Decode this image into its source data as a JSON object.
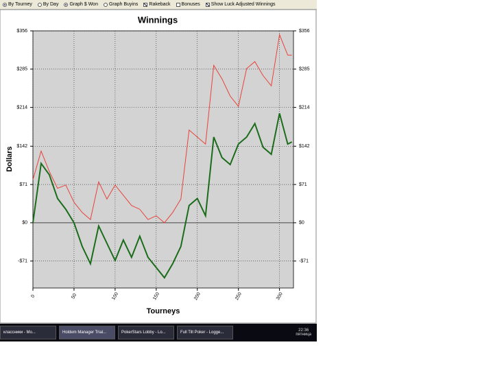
{
  "toolbar": {
    "items": [
      {
        "label": "By Tourney",
        "kind": "radio",
        "checked": true
      },
      {
        "label": "By Day",
        "kind": "radio",
        "checked": false
      },
      {
        "label": "Graph $ Won",
        "kind": "radio",
        "checked": true
      },
      {
        "label": "Graph Buyins",
        "kind": "radio",
        "checked": false
      },
      {
        "label": "Rakeback",
        "kind": "check",
        "checked": true
      },
      {
        "label": "Bonuses",
        "kind": "check",
        "checked": false
      },
      {
        "label": "Show Luck Adjusted Winnings",
        "kind": "check",
        "checked": true
      }
    ]
  },
  "chart_data": {
    "type": "line",
    "title": "Winnings",
    "x_label": "Tourneys",
    "y_label": "Dollars",
    "x": [
      0,
      10,
      20,
      30,
      40,
      50,
      60,
      70,
      80,
      90,
      100,
      110,
      120,
      130,
      140,
      150,
      160,
      170,
      180,
      190,
      200,
      210,
      220,
      230,
      240,
      250,
      260,
      270,
      280,
      290,
      300,
      310,
      315
    ],
    "series": [
      {
        "color": "#e8423a",
        "values": [
          80,
          133,
          95,
          64,
          70,
          38,
          19,
          6,
          76,
          44,
          70,
          51,
          32,
          25,
          6,
          13,
          0,
          19,
          44,
          172,
          159,
          146,
          292,
          267,
          235,
          216,
          286,
          299,
          273,
          254,
          349,
          311,
          311
        ]
      },
      {
        "color": "#1a6b1a",
        "values": [
          0,
          110,
          89,
          45,
          25,
          0,
          -44,
          -76,
          -6,
          -38,
          -70,
          -32,
          -64,
          -25,
          -64,
          -83,
          -102,
          -76,
          -44,
          32,
          45,
          13,
          159,
          121,
          108,
          146,
          159,
          184,
          140,
          127,
          203,
          146,
          150
        ]
      }
    ],
    "xlim": [
      0,
      317
    ],
    "xticks": [
      0,
      50,
      100,
      150,
      200,
      250,
      300
    ],
    "ylim": [
      -121,
      356
    ],
    "yticks": [
      {
        "value": -71,
        "label": "-$71"
      },
      {
        "value": 0,
        "label": "$0"
      },
      {
        "value": 71,
        "label": "$71"
      },
      {
        "value": 142,
        "label": "$142"
      },
      {
        "value": 214,
        "label": "$214"
      },
      {
        "value": 285,
        "label": "$285"
      },
      {
        "value": 356,
        "label": "$356"
      }
    ],
    "y2lim": [
      -121,
      356
    ],
    "y2ticks": [
      {
        "value": -71,
        "label": "-$71"
      },
      {
        "value": 0,
        "label": "$0"
      },
      {
        "value": 71,
        "label": "$71"
      },
      {
        "value": 142,
        "label": "$142"
      },
      {
        "value": 214,
        "label": "$214"
      },
      {
        "value": 285,
        "label": "$285"
      },
      {
        "value": 356,
        "label": "$356"
      }
    ],
    "grid": true
  },
  "taskbar": {
    "items": [
      "классники - Mo...",
      "Holdem Manager Trial...",
      "PokerStars Lobby - Lo...",
      "Full Tilt Poker - Logge..."
    ],
    "time": "22:36",
    "day": "пятница"
  }
}
